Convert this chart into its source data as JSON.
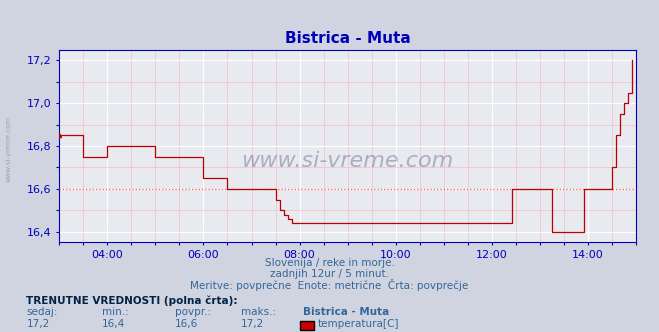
{
  "title": "Bistrica - Muta",
  "bg_color": "#d0d4e0",
  "plot_bg_color": "#e8eaf0",
  "grid_color_major": "#ffffff",
  "grid_color_minor": "#f0c0c0",
  "line_color": "#bb0000",
  "avg_line_color": "#ff5555",
  "axis_color": "#0000bb",
  "tick_color": "#336699",
  "title_color": "#0000bb",
  "text_color": "#336699",
  "ylim": [
    16.35,
    17.25
  ],
  "yticks": [
    16.4,
    16.6,
    16.8,
    17.0,
    17.2
  ],
  "xlim_max": 144,
  "xtick_positions": [
    12,
    36,
    60,
    84,
    108,
    132
  ],
  "xtick_labels": [
    "04:00",
    "06:00",
    "08:00",
    "10:00",
    "12:00",
    "14:00"
  ],
  "avg_value": 16.6,
  "subtitle1": "Slovenija / reke in morje.",
  "subtitle2": "zadnjih 12ur / 5 minut.",
  "subtitle3": "Meritve: povprečne  Enote: metrične  Črta: povprečje",
  "footer_label": "TRENUTNE VREDNOSTI (polna črta):",
  "col_sedaj": "sedaj:",
  "col_min": "min.:",
  "col_povpr": "povpr.:",
  "col_maks": "maks.:",
  "col_station": "Bistrica - Muta",
  "val_sedaj": "17,2",
  "val_min": "16,4",
  "val_povpr": "16,6",
  "val_maks": "17,2",
  "legend_label": "temperatura[C]",
  "watermark": "www.si-vreme.com",
  "left_watermark": "www.si-vreme.com",
  "temperature_data": [
    16.85,
    16.85,
    16.85,
    16.85,
    16.85,
    16.85,
    16.75,
    16.75,
    16.75,
    16.75,
    16.75,
    16.75,
    16.8,
    16.8,
    16.8,
    16.8,
    16.8,
    16.8,
    16.8,
    16.8,
    16.8,
    16.8,
    16.8,
    16.8,
    16.75,
    16.75,
    16.75,
    16.75,
    16.75,
    16.75,
    16.75,
    16.75,
    16.75,
    16.75,
    16.75,
    16.75,
    16.65,
    16.65,
    16.65,
    16.65,
    16.65,
    16.65,
    16.6,
    16.6,
    16.6,
    16.6,
    16.6,
    16.6,
    16.6,
    16.6,
    16.6,
    16.6,
    16.6,
    16.6,
    16.55,
    16.5,
    16.48,
    16.46,
    16.44,
    16.44,
    16.44,
    16.44,
    16.44,
    16.44,
    16.44,
    16.44,
    16.44,
    16.44,
    16.44,
    16.44,
    16.44,
    16.44,
    16.44,
    16.44,
    16.44,
    16.44,
    16.44,
    16.44,
    16.44,
    16.44,
    16.44,
    16.44,
    16.44,
    16.44,
    16.44,
    16.44,
    16.44,
    16.44,
    16.44,
    16.44,
    16.44,
    16.44,
    16.44,
    16.44,
    16.44,
    16.44,
    16.44,
    16.44,
    16.44,
    16.44,
    16.44,
    16.44,
    16.44,
    16.44,
    16.44,
    16.44,
    16.44,
    16.44,
    16.44,
    16.44,
    16.44,
    16.44,
    16.44,
    16.6,
    16.6,
    16.6,
    16.6,
    16.6,
    16.6,
    16.6,
    16.6,
    16.6,
    16.6,
    16.4,
    16.4,
    16.4,
    16.4,
    16.4,
    16.4,
    16.4,
    16.4,
    16.6,
    16.6,
    16.6,
    16.6,
    16.6,
    16.6,
    16.6,
    16.7,
    16.85,
    16.95,
    17.0,
    17.05,
    17.2
  ]
}
